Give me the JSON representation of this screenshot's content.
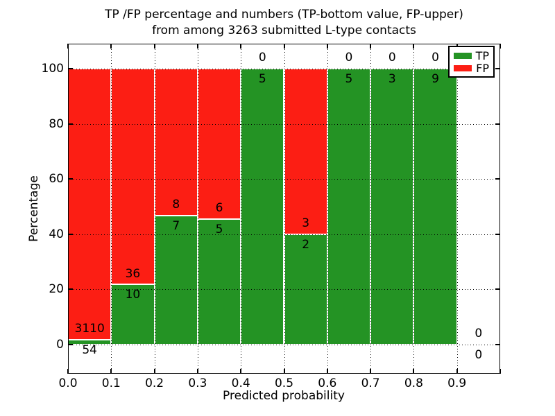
{
  "chart_data": {
    "type": "bar",
    "variant": "stacked-percentage-histogram",
    "title_line1": "TP /FP percentage and numbers (TP-bottom value, FP-upper)",
    "title_line2": "from among 3263 submitted L-type contacts",
    "xlabel": "Predicted probability",
    "ylabel": "Percentage",
    "total_contacts": 3263,
    "x_ticks": [
      "0.0",
      "0.1",
      "0.2",
      "0.3",
      "0.4",
      "0.5",
      "0.6",
      "0.7",
      "0.8",
      "0.9"
    ],
    "y_ticks": [
      0,
      20,
      40,
      60,
      80,
      100
    ],
    "xlim": [
      0.0,
      1.0
    ],
    "ylim": [
      -10.5,
      109
    ],
    "grid": true,
    "bin_width": 0.1,
    "legend": {
      "position": "upper right",
      "entries": [
        {
          "label": "TP",
          "color": "#249324"
        },
        {
          "label": "FP",
          "color": "#fc1e14"
        }
      ]
    },
    "colors": {
      "tp": "#249324",
      "fp": "#fc1e14",
      "background": "#ffffff"
    },
    "bars": [
      {
        "bin_start": 0.0,
        "bin_end": 0.1,
        "tp_count": 54,
        "fp_count": 3110,
        "tp_pct": 1.71,
        "fp_pct": 98.29,
        "has_bar": true
      },
      {
        "bin_start": 0.1,
        "bin_end": 0.2,
        "tp_count": 10,
        "fp_count": 36,
        "tp_pct": 21.74,
        "fp_pct": 78.26,
        "has_bar": true
      },
      {
        "bin_start": 0.2,
        "bin_end": 0.3,
        "tp_count": 7,
        "fp_count": 8,
        "tp_pct": 46.67,
        "fp_pct": 53.33,
        "has_bar": true
      },
      {
        "bin_start": 0.3,
        "bin_end": 0.4,
        "tp_count": 5,
        "fp_count": 6,
        "tp_pct": 45.45,
        "fp_pct": 54.55,
        "has_bar": true
      },
      {
        "bin_start": 0.4,
        "bin_end": 0.5,
        "tp_count": 5,
        "fp_count": 0,
        "tp_pct": 100.0,
        "fp_pct": 0.0,
        "has_bar": true
      },
      {
        "bin_start": 0.5,
        "bin_end": 0.6,
        "tp_count": 2,
        "fp_count": 3,
        "tp_pct": 40.0,
        "fp_pct": 60.0,
        "has_bar": true
      },
      {
        "bin_start": 0.6,
        "bin_end": 0.7,
        "tp_count": 5,
        "fp_count": 0,
        "tp_pct": 100.0,
        "fp_pct": 0.0,
        "has_bar": true
      },
      {
        "bin_start": 0.7,
        "bin_end": 0.8,
        "tp_count": 3,
        "fp_count": 0,
        "tp_pct": 100.0,
        "fp_pct": 0.0,
        "has_bar": true
      },
      {
        "bin_start": 0.8,
        "bin_end": 0.9,
        "tp_count": 9,
        "fp_count": 0,
        "tp_pct": 100.0,
        "fp_pct": 0.0,
        "has_bar": true
      },
      {
        "bin_start": 0.9,
        "bin_end": 1.0,
        "tp_count": 0,
        "fp_count": 0,
        "tp_pct": 0.0,
        "fp_pct": 0.0,
        "has_bar": false
      }
    ]
  }
}
